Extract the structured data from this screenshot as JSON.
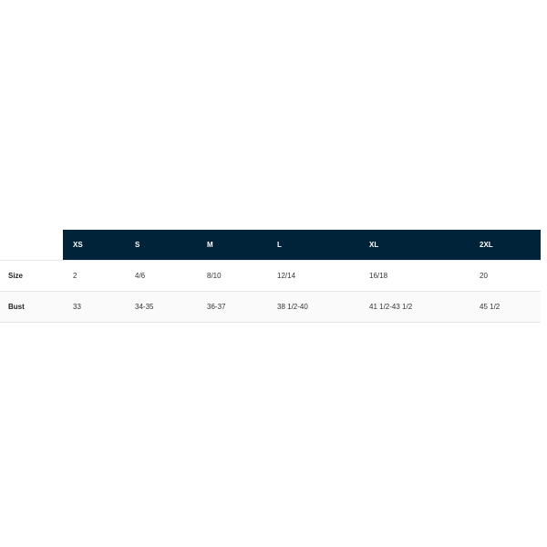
{
  "size_chart": {
    "columns": [
      "XS",
      "S",
      "M",
      "L",
      "XL",
      "2XL"
    ],
    "rows": [
      {
        "label": "Size",
        "values": [
          "2",
          "4/6",
          "8/10",
          "12/14",
          "16/18",
          "20"
        ]
      },
      {
        "label": "Bust",
        "values": [
          "33",
          "34-35",
          "36-37",
          "38 1/2-40",
          "41 1/2-43 1/2",
          "45 1/2"
        ]
      }
    ],
    "colors": {
      "header_bg": "#012339",
      "header_text": "#ffffff",
      "alt_row_bg": "#fafafa"
    }
  }
}
